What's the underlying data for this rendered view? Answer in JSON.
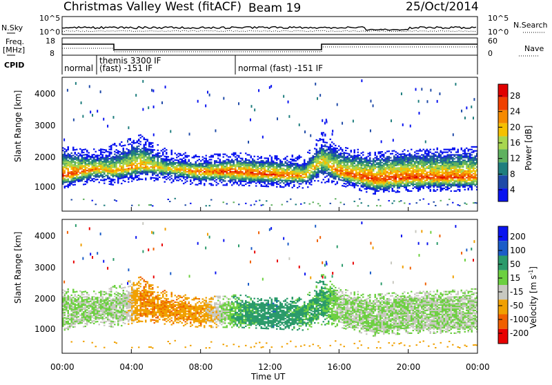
{
  "header": {
    "title": "Christmas Valley West (fitACF)",
    "beam": "Beam 19",
    "date": "25/Oct/2014"
  },
  "strip": {
    "nsky_label": "N.Sky",
    "nsearch_label": "N.Search",
    "noise_ticks": [
      "10^5",
      "10^0"
    ],
    "freq_label": "Freq.",
    "freq_unit": "[MHz]",
    "freq_ticks": [
      "18",
      "8"
    ],
    "nave_label": "Nave",
    "nave_ticks": [
      "60",
      "0"
    ],
    "cpid_label": "CPID",
    "modes": [
      {
        "name": "normal",
        "start": 0,
        "end": 2
      },
      {
        "name": "themis 3300 IF",
        "sub": "(fast) -151 IF",
        "start": 2,
        "end": 10
      },
      {
        "name": "normal (fast) -151 IF",
        "start": 10,
        "end": 24
      }
    ]
  },
  "power_panel": {
    "ylabel": "Slant Range [km]",
    "yticks": [
      "4000",
      "3000",
      "2000",
      "1000"
    ],
    "colorbar_label": "Power [dB]",
    "colorbar_ticks": [
      "28",
      "24",
      "20",
      "16",
      "12",
      "8",
      "4"
    ]
  },
  "velocity_panel": {
    "ylabel": "Slant Range [km]",
    "yticks": [
      "4000",
      "3000",
      "2000",
      "1000"
    ],
    "colorbar_label": "Velocity [m s",
    "colorbar_exp": "-1",
    "colorbar_ticks": [
      "200",
      "100",
      "50",
      "15",
      "-15",
      "-50",
      "-100",
      "-200"
    ]
  },
  "xaxis": {
    "label": "Time UT",
    "ticks": [
      "00:00",
      "04:00",
      "08:00",
      "12:00",
      "16:00",
      "20:00",
      "00:00"
    ]
  },
  "colors": {
    "power": [
      "#0a14f0",
      "#1f4aa8",
      "#1f7e7e",
      "#5fb15f",
      "#a8d64f",
      "#f5c000",
      "#f58a00",
      "#f04000",
      "#e00000"
    ],
    "velocity": [
      "#0a14f0",
      "#1a5cc8",
      "#2a9a6a",
      "#6cd040",
      "#c8c8c0",
      "#f0a000",
      "#f06000",
      "#e80000"
    ]
  },
  "chart_data": [
    {
      "type": "heatmap",
      "title": "Power",
      "x_range_hours": [
        0,
        24
      ],
      "y_range_km": [
        0,
        4500
      ],
      "colorbar_range_db": [
        0,
        30
      ],
      "scatter_band": [
        {
          "t": 0.0,
          "center": 1150,
          "upper": 1900,
          "lower": 900,
          "peak": 26
        },
        {
          "t": 2.0,
          "center": 1400,
          "upper": 1800,
          "lower": 1100,
          "peak": 22
        },
        {
          "t": 3.0,
          "center": 1300,
          "upper": 2000,
          "lower": 1000,
          "peak": 20
        },
        {
          "t": 4.5,
          "center": 1500,
          "upper": 2300,
          "lower": 1200,
          "peak": 22
        },
        {
          "t": 6.0,
          "center": 1400,
          "upper": 1800,
          "lower": 1100,
          "peak": 18
        },
        {
          "t": 8.0,
          "center": 1300,
          "upper": 1600,
          "lower": 1000,
          "peak": 24
        },
        {
          "t": 10.0,
          "center": 1300,
          "upper": 1700,
          "lower": 1000,
          "peak": 26
        },
        {
          "t": 12.0,
          "center": 1200,
          "upper": 1600,
          "lower": 950,
          "peak": 26
        },
        {
          "t": 14.0,
          "center": 1150,
          "upper": 1600,
          "lower": 900,
          "peak": 22
        },
        {
          "t": 15.0,
          "center": 1700,
          "upper": 2400,
          "lower": 1100,
          "peak": 18
        },
        {
          "t": 16.0,
          "center": 1250,
          "upper": 1900,
          "lower": 1000,
          "peak": 24
        },
        {
          "t": 18.0,
          "center": 1050,
          "upper": 1700,
          "lower": 700,
          "peak": 26
        },
        {
          "t": 20.0,
          "center": 1100,
          "upper": 1800,
          "lower": 800,
          "peak": 26
        },
        {
          "t": 24.0,
          "center": 1100,
          "upper": 1900,
          "lower": 800,
          "peak": 24
        }
      ]
    },
    {
      "type": "heatmap",
      "title": "Velocity",
      "x_range_hours": [
        0,
        24
      ],
      "y_range_km": [
        0,
        4500
      ],
      "colorbar_range_ms": [
        -200,
        200
      ],
      "dominant_velocity": [
        {
          "t": 0.0,
          "v": 0
        },
        {
          "t": 3.5,
          "v": 0
        },
        {
          "t": 4.5,
          "v": -70
        },
        {
          "t": 8.0,
          "v": -60
        },
        {
          "t": 10.0,
          "v": 30
        },
        {
          "t": 12.0,
          "v": 60
        },
        {
          "t": 14.0,
          "v": 40
        },
        {
          "t": 15.0,
          "v": 40
        },
        {
          "t": 16.0,
          "v": 0
        },
        {
          "t": 24.0,
          "v": 0
        }
      ]
    }
  ]
}
